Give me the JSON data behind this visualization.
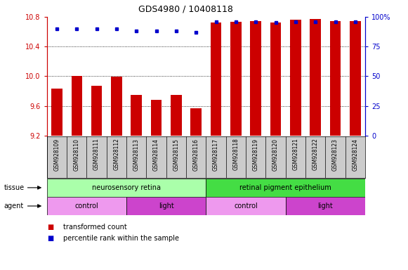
{
  "title": "GDS4980 / 10408118",
  "samples": [
    "GSM928109",
    "GSM928110",
    "GSM928111",
    "GSM928112",
    "GSM928113",
    "GSM928114",
    "GSM928115",
    "GSM928116",
    "GSM928117",
    "GSM928118",
    "GSM928119",
    "GSM928120",
    "GSM928121",
    "GSM928122",
    "GSM928123",
    "GSM928124"
  ],
  "bar_values": [
    9.83,
    10.0,
    9.87,
    9.99,
    9.75,
    9.68,
    9.75,
    9.57,
    10.72,
    10.73,
    10.74,
    10.72,
    10.76,
    10.77,
    10.74,
    10.74
  ],
  "percentile_rank": [
    90,
    90,
    90,
    90,
    88,
    88,
    88,
    87,
    96,
    96,
    96,
    95,
    96,
    96,
    96,
    96
  ],
  "ymin": 9.2,
  "ymax": 10.8,
  "yticks": [
    9.2,
    9.6,
    10.0,
    10.4,
    10.8
  ],
  "right_yticks": [
    0,
    25,
    50,
    75,
    100
  ],
  "bar_color": "#cc0000",
  "percentile_color": "#0000cc",
  "tissue_groups": [
    {
      "label": "neurosensory retina",
      "start": 0,
      "end": 8,
      "color": "#aaffaa"
    },
    {
      "label": "retinal pigment epithelium",
      "start": 8,
      "end": 16,
      "color": "#44dd44"
    }
  ],
  "agent_groups": [
    {
      "label": "control",
      "start": 0,
      "end": 4,
      "color": "#ee99ee"
    },
    {
      "label": "light",
      "start": 4,
      "end": 8,
      "color": "#cc44cc"
    },
    {
      "label": "control",
      "start": 8,
      "end": 12,
      "color": "#ee99ee"
    },
    {
      "label": "light",
      "start": 12,
      "end": 16,
      "color": "#cc44cc"
    }
  ],
  "axis_color_left": "#cc0000",
  "axis_color_right": "#0000cc",
  "bar_width": 0.55,
  "xlabel_bg": "#cccccc",
  "grid_yticks": [
    9.6,
    10.0,
    10.4
  ]
}
